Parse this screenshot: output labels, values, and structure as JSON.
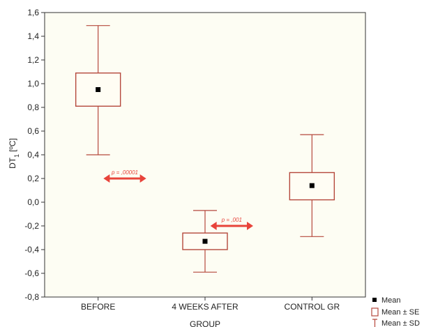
{
  "chart_data": {
    "type": "box",
    "xlabel": "GROUP",
    "ylabel": "DT",
    "ylabel_sub": "1",
    "ylabel_unit": "[ºC]",
    "ylim": [
      -0.8,
      1.6
    ],
    "yticks": [
      1.6,
      1.4,
      1.2,
      1.0,
      0.8,
      0.6,
      0.4,
      0.2,
      0.0,
      -0.2,
      -0.4,
      -0.6,
      -0.8
    ],
    "ytick_labels": [
      "1,6",
      "1,4",
      "1,2",
      "1,0",
      "0,8",
      "0,6",
      "0,4",
      "0,2",
      "0,0",
      "-0,2",
      "-0,4",
      "-0,6",
      "-0,8"
    ],
    "categories": [
      "BEFORE",
      "4 WEEKS AFTER",
      "CONTROL GR"
    ],
    "groups": [
      {
        "mean": 0.95,
        "se_low": 0.81,
        "se_high": 1.09,
        "sd_low": 0.4,
        "sd_high": 1.49
      },
      {
        "mean": -0.33,
        "se_low": -0.4,
        "se_high": -0.26,
        "sd_low": -0.59,
        "sd_high": -0.07
      },
      {
        "mean": 0.14,
        "se_low": 0.02,
        "se_high": 0.25,
        "sd_low": -0.29,
        "sd_high": 0.57
      }
    ],
    "legend": [
      "Mean",
      "Mean ± SE",
      "Mean ± SD"
    ],
    "legend_position": "bottom-right",
    "annotations": [
      {
        "text": "p = ,00001",
        "x1": 0.55,
        "x2": 0.95,
        "y": 0.2
      },
      {
        "text": "p = ,001",
        "x1": 1.55,
        "x2": 1.95,
        "y": -0.2
      }
    ],
    "grid": false,
    "colors": {
      "box": "#b5483c",
      "mean": "#000000",
      "arrow": "#e8433a",
      "plot_bg": "#fdfdf3"
    }
  }
}
